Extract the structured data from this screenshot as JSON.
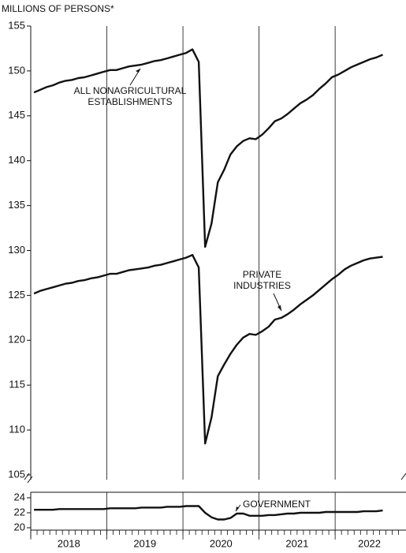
{
  "chart_data": [
    {
      "type": "line",
      "y_label": "MILLIONS OF PERSONS*",
      "x": [
        2018.042,
        2018.125,
        2018.208,
        2018.292,
        2018.375,
        2018.458,
        2018.542,
        2018.625,
        2018.708,
        2018.792,
        2018.875,
        2018.958,
        2019.042,
        2019.125,
        2019.208,
        2019.292,
        2019.375,
        2019.458,
        2019.542,
        2019.625,
        2019.708,
        2019.792,
        2019.875,
        2019.958,
        2020.042,
        2020.125,
        2020.208,
        2020.292,
        2020.375,
        2020.458,
        2020.542,
        2020.625,
        2020.708,
        2020.792,
        2020.875,
        2020.958,
        2021.042,
        2021.125,
        2021.208,
        2021.292,
        2021.375,
        2021.458,
        2021.542,
        2021.625,
        2021.708,
        2021.792,
        2021.875,
        2021.958,
        2022.042,
        2022.125,
        2022.208,
        2022.292,
        2022.375,
        2022.458,
        2022.542,
        2022.625
      ],
      "series": [
        {
          "name": "ALL NONAGRICULTURAL ESTABLISHMENTS",
          "color": "#111111",
          "values": [
            147.6,
            147.9,
            148.2,
            148.4,
            148.7,
            148.9,
            149.0,
            149.2,
            149.3,
            149.5,
            149.7,
            149.9,
            150.1,
            150.1,
            150.3,
            150.5,
            150.6,
            150.7,
            150.9,
            151.1,
            151.2,
            151.4,
            151.6,
            151.8,
            152.0,
            152.4,
            151.0,
            130.4,
            133.0,
            137.6,
            139.0,
            140.7,
            141.6,
            142.2,
            142.5,
            142.4,
            142.9,
            143.6,
            144.4,
            144.7,
            145.2,
            145.8,
            146.4,
            146.8,
            147.3,
            148.0,
            148.6,
            149.3,
            149.6,
            150.0,
            150.4,
            150.7,
            151.0,
            151.3,
            151.5,
            151.8
          ]
        },
        {
          "name": "PRIVATE INDUSTRIES",
          "color": "#111111",
          "values": [
            125.2,
            125.5,
            125.7,
            125.9,
            126.1,
            126.3,
            126.4,
            126.6,
            126.7,
            126.9,
            127.0,
            127.2,
            127.4,
            127.4,
            127.6,
            127.8,
            127.9,
            128.0,
            128.1,
            128.3,
            128.4,
            128.6,
            128.8,
            129.0,
            129.2,
            129.5,
            128.1,
            108.5,
            111.4,
            116.0,
            117.3,
            118.5,
            119.5,
            120.3,
            120.7,
            120.6,
            121.0,
            121.5,
            122.3,
            122.5,
            122.9,
            123.4,
            124.0,
            124.5,
            125.0,
            125.6,
            126.2,
            126.8,
            127.3,
            127.9,
            128.3,
            128.6,
            128.9,
            129.1,
            129.2,
            129.3
          ]
        }
      ],
      "xlim": [
        2018,
        2022.9
      ],
      "ylim": [
        105,
        155
      ],
      "yticks": [
        105,
        110,
        115,
        120,
        125,
        130,
        135,
        140,
        145,
        150,
        155
      ]
    },
    {
      "type": "line",
      "x": [
        2018.042,
        2018.125,
        2018.208,
        2018.292,
        2018.375,
        2018.458,
        2018.542,
        2018.625,
        2018.708,
        2018.792,
        2018.875,
        2018.958,
        2019.042,
        2019.125,
        2019.208,
        2019.292,
        2019.375,
        2019.458,
        2019.542,
        2019.625,
        2019.708,
        2019.792,
        2019.875,
        2019.958,
        2020.042,
        2020.125,
        2020.208,
        2020.292,
        2020.375,
        2020.458,
        2020.542,
        2020.625,
        2020.708,
        2020.792,
        2020.875,
        2020.958,
        2021.042,
        2021.125,
        2021.208,
        2021.292,
        2021.375,
        2021.458,
        2021.542,
        2021.625,
        2021.708,
        2021.792,
        2021.875,
        2021.958,
        2022.042,
        2022.125,
        2022.208,
        2022.292,
        2022.375,
        2022.458,
        2022.542,
        2022.625
      ],
      "series": [
        {
          "name": "GOVERNMENT",
          "color": "#111111",
          "values": [
            22.4,
            22.4,
            22.4,
            22.4,
            22.5,
            22.5,
            22.5,
            22.5,
            22.5,
            22.5,
            22.5,
            22.5,
            22.6,
            22.6,
            22.6,
            22.6,
            22.6,
            22.7,
            22.7,
            22.7,
            22.7,
            22.8,
            22.8,
            22.8,
            22.9,
            22.9,
            22.9,
            22.0,
            21.4,
            21.1,
            21.1,
            21.3,
            21.9,
            21.9,
            21.6,
            21.6,
            21.6,
            21.7,
            21.7,
            21.8,
            21.9,
            21.9,
            22.0,
            22.0,
            22.0,
            22.0,
            22.1,
            22.1,
            22.1,
            22.1,
            22.1,
            22.1,
            22.2,
            22.2,
            22.2,
            22.3
          ]
        }
      ],
      "xlim": [
        2018,
        2022.9
      ],
      "ylim": [
        20,
        24
      ],
      "yticks": [
        20,
        22,
        24
      ],
      "xticks": [
        2018,
        2019,
        2020,
        2021,
        2022
      ]
    }
  ]
}
